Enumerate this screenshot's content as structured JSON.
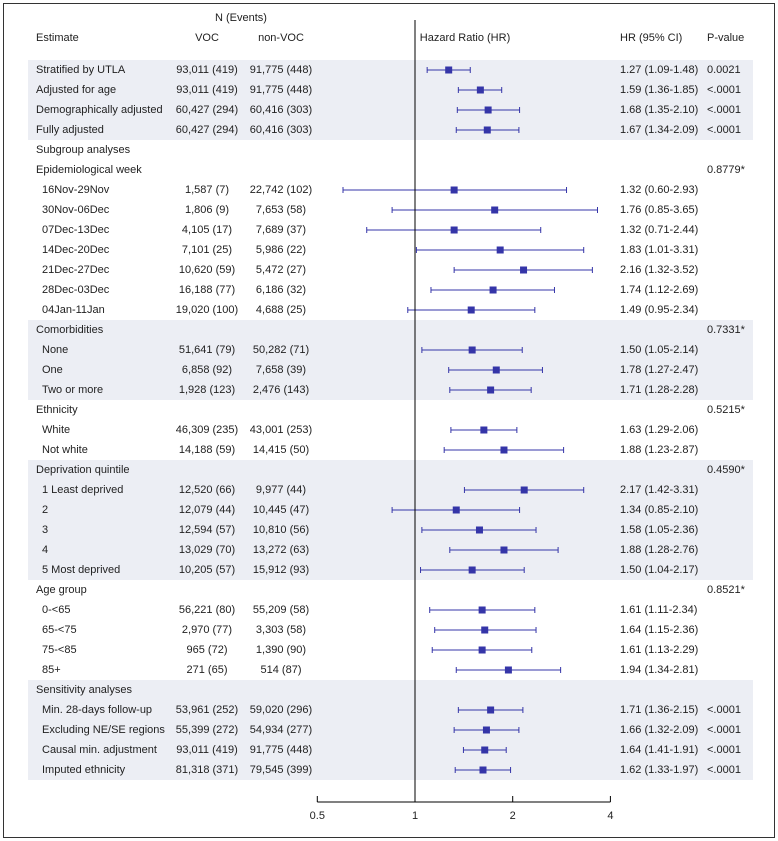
{
  "chart_data": {
    "type": "forest",
    "headers": {
      "n_events": "N (Events)",
      "estimate": "Estimate",
      "voc": "VOC",
      "non_voc": "non-VOC",
      "hr_axis": "Hazard Ratio (HR)",
      "hr_ci": "HR (95% CI)",
      "pvalue": "P-value"
    },
    "x_scale": "log2",
    "xlim": [
      0.5,
      4
    ],
    "reference_line": 1,
    "x_ticks": [
      "0.5",
      "1",
      "2",
      "4"
    ],
    "marker_color": "#3535a8",
    "band_color": "#eceef4",
    "rows": [
      {
        "label": "Stratified by UTLA",
        "voc": "93,011 (419)",
        "nonvoc": "91,775 (448)",
        "hr": 1.27,
        "lo": 1.09,
        "hi": 1.48,
        "hr_text": "1.27 (1.09-1.48)",
        "p": "0.0021",
        "band": true
      },
      {
        "label": "Adjusted for age",
        "voc": "93,011 (419)",
        "nonvoc": "91,775 (448)",
        "hr": 1.59,
        "lo": 1.36,
        "hi": 1.85,
        "hr_text": "1.59 (1.36-1.85)",
        "p": "<.0001",
        "band": true
      },
      {
        "label": "Demographically adjusted",
        "voc": "60,427 (294)",
        "nonvoc": "60,416 (303)",
        "hr": 1.68,
        "lo": 1.35,
        "hi": 2.1,
        "hr_text": "1.68 (1.35-2.10)",
        "p": "<.0001",
        "band": true
      },
      {
        "label": "Fully adjusted",
        "voc": "60,427 (294)",
        "nonvoc": "60,416 (303)",
        "hr": 1.67,
        "lo": 1.34,
        "hi": 2.09,
        "hr_text": "1.67 (1.34-2.09)",
        "p": "<.0001",
        "band": true
      },
      {
        "label": "Subgroup analyses",
        "header": true
      },
      {
        "label": "Epidemiological week",
        "header": true,
        "p": "0.8779*"
      },
      {
        "label": "16Nov-29Nov",
        "sub": true,
        "voc": "1,587 (7)",
        "nonvoc": "22,742 (102)",
        "hr": 1.32,
        "lo": 0.6,
        "hi": 2.93,
        "hr_text": "1.32 (0.60-2.93)"
      },
      {
        "label": "30Nov-06Dec",
        "sub": true,
        "voc": "1,806 (9)",
        "nonvoc": "7,653 (58)",
        "hr": 1.76,
        "lo": 0.85,
        "hi": 3.65,
        "hr_text": "1.76 (0.85-3.65)"
      },
      {
        "label": "07Dec-13Dec",
        "sub": true,
        "voc": "4,105 (17)",
        "nonvoc": "7,689 (37)",
        "hr": 1.32,
        "lo": 0.71,
        "hi": 2.44,
        "hr_text": "1.32 (0.71-2.44)"
      },
      {
        "label": "14Dec-20Dec",
        "sub": true,
        "voc": "7,101 (25)",
        "nonvoc": "5,986 (22)",
        "hr": 1.83,
        "lo": 1.01,
        "hi": 3.31,
        "hr_text": "1.83 (1.01-3.31)"
      },
      {
        "label": "21Dec-27Dec",
        "sub": true,
        "voc": "10,620 (59)",
        "nonvoc": "5,472 (27)",
        "hr": 2.16,
        "lo": 1.32,
        "hi": 3.52,
        "hr_text": "2.16 (1.32-3.52)"
      },
      {
        "label": "28Dec-03Dec",
        "sub": true,
        "voc": "16,188 (77)",
        "nonvoc": "6,186 (32)",
        "hr": 1.74,
        "lo": 1.12,
        "hi": 2.69,
        "hr_text": "1.74 (1.12-2.69)"
      },
      {
        "label": "04Jan-11Jan",
        "sub": true,
        "voc": "19,020 (100)",
        "nonvoc": "4,688 (25)",
        "hr": 1.49,
        "lo": 0.95,
        "hi": 2.34,
        "hr_text": "1.49 (0.95-2.34)"
      },
      {
        "label": "Comorbidities",
        "header": true,
        "p": "0.7331*",
        "band": true
      },
      {
        "label": "None",
        "sub": true,
        "voc": "51,641 (79)",
        "nonvoc": "50,282 (71)",
        "hr": 1.5,
        "lo": 1.05,
        "hi": 2.14,
        "hr_text": "1.50 (1.05-2.14)",
        "band": true
      },
      {
        "label": "One",
        "sub": true,
        "voc": "6,858 (92)",
        "nonvoc": "7,658 (39)",
        "hr": 1.78,
        "lo": 1.27,
        "hi": 2.47,
        "hr_text": "1.78 (1.27-2.47)",
        "band": true
      },
      {
        "label": "Two or more",
        "sub": true,
        "voc": "1,928 (123)",
        "nonvoc": "2,476 (143)",
        "hr": 1.71,
        "lo": 1.28,
        "hi": 2.28,
        "hr_text": "1.71 (1.28-2.28)",
        "band": true
      },
      {
        "label": "Ethnicity",
        "header": true,
        "p": "0.5215*"
      },
      {
        "label": "White",
        "sub": true,
        "voc": "46,309 (235)",
        "nonvoc": "43,001 (253)",
        "hr": 1.63,
        "lo": 1.29,
        "hi": 2.06,
        "hr_text": "1.63 (1.29-2.06)"
      },
      {
        "label": "Not white",
        "sub": true,
        "voc": "14,188 (59)",
        "nonvoc": "14,415 (50)",
        "hr": 1.88,
        "lo": 1.23,
        "hi": 2.87,
        "hr_text": "1.88 (1.23-2.87)"
      },
      {
        "label": "Deprivation quintile",
        "header": true,
        "p": "0.4590*",
        "band": true
      },
      {
        "label": "1 Least deprived",
        "sub": true,
        "voc": "12,520 (66)",
        "nonvoc": "9,977 (44)",
        "hr": 2.17,
        "lo": 1.42,
        "hi": 3.31,
        "hr_text": "2.17 (1.42-3.31)",
        "band": true
      },
      {
        "label": "2",
        "sub": true,
        "voc": "12,079 (44)",
        "nonvoc": "10,445 (47)",
        "hr": 1.34,
        "lo": 0.85,
        "hi": 2.1,
        "hr_text": "1.34 (0.85-2.10)",
        "band": true
      },
      {
        "label": "3",
        "sub": true,
        "voc": "12,594 (57)",
        "nonvoc": "10,810 (56)",
        "hr": 1.58,
        "lo": 1.05,
        "hi": 2.36,
        "hr_text": "1.58 (1.05-2.36)",
        "band": true
      },
      {
        "label": "4",
        "sub": true,
        "voc": "13,029 (70)",
        "nonvoc": "13,272 (63)",
        "hr": 1.88,
        "lo": 1.28,
        "hi": 2.76,
        "hr_text": "1.88 (1.28-2.76)",
        "band": true
      },
      {
        "label": "5 Most deprived",
        "sub": true,
        "voc": "10,205 (57)",
        "nonvoc": "15,912 (93)",
        "hr": 1.5,
        "lo": 1.04,
        "hi": 2.17,
        "hr_text": "1.50 (1.04-2.17)",
        "band": true
      },
      {
        "label": "Age group",
        "header": true,
        "p": "0.8521*"
      },
      {
        "label": "0-<65",
        "sub": true,
        "voc": "56,221 (80)",
        "nonvoc": "55,209 (58)",
        "hr": 1.61,
        "lo": 1.11,
        "hi": 2.34,
        "hr_text": "1.61 (1.11-2.34)"
      },
      {
        "label": "65-<75",
        "sub": true,
        "voc": "2,970 (77)",
        "nonvoc": "3,303 (58)",
        "hr": 1.64,
        "lo": 1.15,
        "hi": 2.36,
        "hr_text": "1.64 (1.15-2.36)"
      },
      {
        "label": "75-<85",
        "sub": true,
        "voc": "965 (72)",
        "nonvoc": "1,390 (90)",
        "hr": 1.61,
        "lo": 1.13,
        "hi": 2.29,
        "hr_text": "1.61 (1.13-2.29)"
      },
      {
        "label": "85+",
        "sub": true,
        "voc": "271 (65)",
        "nonvoc": "514 (87)",
        "hr": 1.94,
        "lo": 1.34,
        "hi": 2.81,
        "hr_text": "1.94 (1.34-2.81)"
      },
      {
        "label": "Sensitivity analyses",
        "header": true,
        "band": true
      },
      {
        "label": "Min. 28-days follow-up",
        "sub": true,
        "voc": "53,961 (252)",
        "nonvoc": "59,020 (296)",
        "hr": 1.71,
        "lo": 1.36,
        "hi": 2.15,
        "hr_text": "1.71 (1.36-2.15)",
        "p": "<.0001",
        "band": true
      },
      {
        "label": "Excluding NE/SE regions",
        "sub": true,
        "voc": "55,399 (272)",
        "nonvoc": "54,934 (277)",
        "hr": 1.66,
        "lo": 1.32,
        "hi": 2.09,
        "hr_text": "1.66 (1.32-2.09)",
        "p": "<.0001",
        "band": true
      },
      {
        "label": "Causal min. adjustment",
        "sub": true,
        "voc": "93,011 (419)",
        "nonvoc": "91,775 (448)",
        "hr": 1.64,
        "lo": 1.41,
        "hi": 1.91,
        "hr_text": "1.64 (1.41-1.91)",
        "p": "<.0001",
        "band": true
      },
      {
        "label": "Imputed ethnicity",
        "sub": true,
        "voc": "81,318 (371)",
        "nonvoc": "79,545 (399)",
        "hr": 1.62,
        "lo": 1.33,
        "hi": 1.97,
        "hr_text": "1.62 (1.33-1.97)",
        "p": "<.0001",
        "band": true
      }
    ]
  }
}
